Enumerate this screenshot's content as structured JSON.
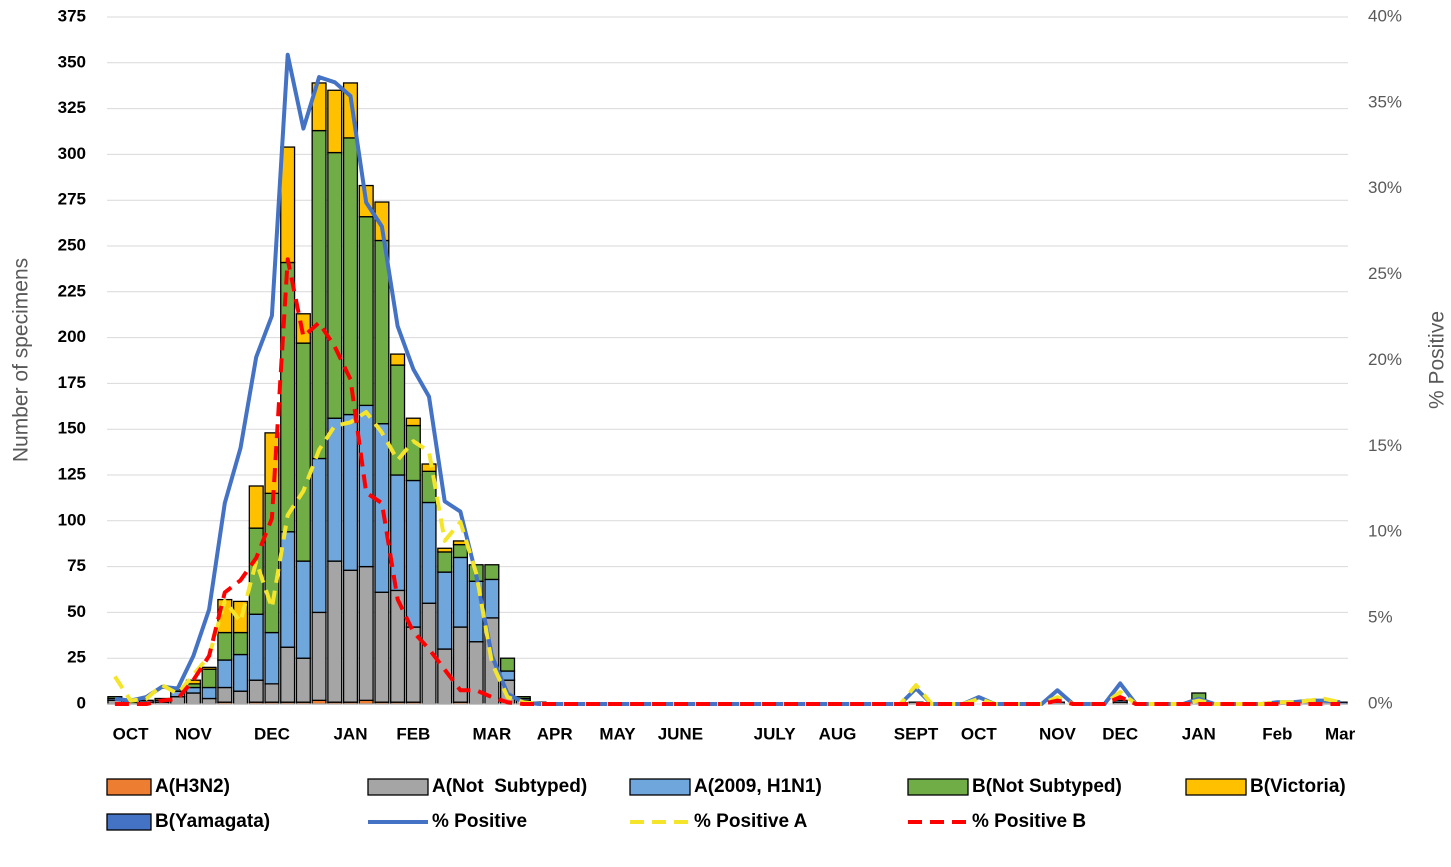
{
  "chart_data": {
    "type": "bar",
    "stacked": true,
    "y_label": "Number of specimens",
    "y2_label": "% Positive",
    "ylim": [
      0,
      375
    ],
    "yticks": [
      0,
      25,
      50,
      75,
      100,
      125,
      150,
      175,
      200,
      225,
      250,
      275,
      300,
      325,
      350,
      375
    ],
    "y2lim": [
      0,
      40
    ],
    "y2ticks": [
      {
        "value": 0,
        "label": "0%"
      },
      {
        "value": 5,
        "label": "5%"
      },
      {
        "value": 10,
        "label": "10%"
      },
      {
        "value": 15,
        "label": "15%"
      },
      {
        "value": 20,
        "label": "20%"
      },
      {
        "value": 25,
        "label": "25%"
      },
      {
        "value": 30,
        "label": "30%"
      },
      {
        "value": 35,
        "label": "35%"
      },
      {
        "value": 40,
        "label": "40%"
      }
    ],
    "grid": true,
    "categories": [
      null,
      "OCT",
      null,
      null,
      null,
      "NOV",
      null,
      null,
      null,
      null,
      "DEC",
      null,
      null,
      null,
      null,
      "JAN",
      null,
      null,
      null,
      "FEB",
      null,
      null,
      null,
      null,
      "MAR",
      null,
      null,
      null,
      "APR",
      null,
      null,
      null,
      "MAY",
      null,
      null,
      null,
      "JUNE",
      null,
      null,
      null,
      null,
      null,
      "JULY",
      null,
      null,
      null,
      "AUG",
      null,
      null,
      null,
      null,
      "SEPT",
      null,
      null,
      null,
      "OCT",
      null,
      null,
      null,
      null,
      "NOV",
      null,
      null,
      null,
      "DEC",
      null,
      null,
      null,
      null,
      "JAN",
      null,
      null,
      null,
      null,
      "Feb",
      null,
      null,
      null,
      "Mar"
    ],
    "series": [
      {
        "name": "A(H3N2)",
        "type": "bar",
        "color": "#ED7D31",
        "values": [
          0,
          0,
          0,
          0,
          0,
          0,
          0,
          1,
          0,
          1,
          1,
          1,
          1,
          2,
          1,
          1,
          2,
          1,
          1,
          1,
          0,
          0,
          1,
          0,
          0,
          0,
          0,
          0,
          0,
          0,
          0,
          0,
          0,
          0,
          0,
          0,
          0,
          0,
          0,
          0,
          0,
          0,
          0,
          0,
          0,
          0,
          0,
          0,
          0,
          0,
          0,
          0,
          0,
          0,
          0,
          0,
          0,
          0,
          0,
          0,
          0,
          0,
          0,
          0,
          0,
          0,
          0,
          0,
          0,
          0,
          0,
          0,
          0,
          0,
          0,
          0,
          0,
          0,
          0
        ]
      },
      {
        "name": "A(Not  Subtyped)",
        "type": "bar",
        "color": "#A5A5A5",
        "values": [
          2,
          0,
          1,
          1,
          4,
          6,
          3,
          8,
          7,
          12,
          10,
          30,
          24,
          48,
          77,
          72,
          73,
          60,
          61,
          41,
          55,
          30,
          41,
          34,
          47,
          13,
          2,
          1,
          0,
          0,
          0,
          0,
          0,
          0,
          0,
          0,
          0,
          0,
          0,
          0,
          0,
          0,
          0,
          0,
          0,
          0,
          0,
          0,
          0,
          0,
          0,
          1,
          0,
          0,
          0,
          0,
          0,
          0,
          0,
          0,
          0,
          0,
          0,
          0,
          1,
          0,
          0,
          0,
          0,
          1,
          0,
          0,
          0,
          0,
          1,
          1,
          1,
          2,
          0
        ]
      },
      {
        "name": "A(2009, H1N1)",
        "type": "bar",
        "color": "#6FA6DC",
        "values": [
          1,
          0,
          1,
          1,
          3,
          3,
          6,
          15,
          20,
          36,
          28,
          63,
          53,
          84,
          78,
          85,
          88,
          92,
          63,
          80,
          55,
          42,
          38,
          33,
          21,
          5,
          1,
          0,
          0,
          0,
          0,
          0,
          0,
          0,
          0,
          0,
          0,
          0,
          0,
          0,
          0,
          0,
          0,
          0,
          0,
          0,
          0,
          0,
          0,
          0,
          0,
          0,
          0,
          0,
          0,
          0,
          0,
          0,
          0,
          0,
          1,
          0,
          0,
          0,
          1,
          0,
          0,
          0,
          0,
          0,
          0,
          0,
          0,
          0,
          0,
          0,
          0,
          0,
          0
        ]
      },
      {
        "name": "B(Not Subtyped)",
        "type": "bar",
        "color": "#70AD47",
        "values": [
          1,
          1,
          0,
          1,
          1,
          2,
          10,
          15,
          12,
          47,
          76,
          147,
          119,
          179,
          145,
          151,
          103,
          100,
          60,
          30,
          17,
          11,
          7,
          9,
          8,
          7,
          1,
          0,
          0,
          0,
          0,
          0,
          0,
          0,
          0,
          0,
          0,
          0,
          0,
          0,
          0,
          0,
          0,
          0,
          0,
          0,
          0,
          0,
          0,
          0,
          0,
          0,
          0,
          0,
          0,
          0,
          0,
          0,
          0,
          0,
          0,
          0,
          0,
          0,
          0,
          0,
          0,
          0,
          0,
          5,
          0,
          0,
          0,
          0,
          0,
          0,
          0,
          0,
          0
        ]
      },
      {
        "name": "B(Victoria)",
        "type": "bar",
        "color": "#FFC000",
        "values": [
          0,
          0,
          0,
          0,
          1,
          2,
          1,
          18,
          17,
          23,
          33,
          63,
          16,
          26,
          34,
          30,
          17,
          21,
          6,
          4,
          4,
          2,
          2,
          0,
          0,
          0,
          0,
          0,
          0,
          0,
          0,
          0,
          0,
          0,
          0,
          0,
          0,
          0,
          0,
          0,
          0,
          0,
          0,
          0,
          0,
          0,
          0,
          0,
          0,
          0,
          0,
          0,
          0,
          0,
          0,
          0,
          0,
          0,
          0,
          0,
          0,
          0,
          0,
          0,
          0,
          0,
          0,
          0,
          0,
          0,
          0,
          0,
          0,
          0,
          0,
          0,
          0,
          0,
          0
        ]
      },
      {
        "name": "B(Yamagata)",
        "type": "bar",
        "color": "#4472C4",
        "values": [
          0,
          0,
          0,
          0,
          0,
          0,
          0,
          0,
          0,
          0,
          0,
          0,
          0,
          0,
          0,
          0,
          0,
          0,
          0,
          0,
          0,
          0,
          0,
          0,
          0,
          0,
          0,
          0,
          0,
          0,
          0,
          0,
          0,
          0,
          0,
          0,
          0,
          0,
          0,
          0,
          0,
          0,
          0,
          0,
          0,
          0,
          0,
          0,
          0,
          0,
          0,
          0,
          0,
          0,
          0,
          0,
          0,
          0,
          0,
          0,
          0,
          0,
          0,
          0,
          0,
          0,
          0,
          0,
          0,
          0,
          0,
          0,
          0,
          0,
          0,
          0,
          1,
          0,
          1
        ]
      },
      {
        "name": "% Positive",
        "type": "line",
        "axis": "y2",
        "color": "#4472C4",
        "dash": false,
        "values": [
          0.3,
          0.2,
          0.4,
          1.0,
          0.9,
          2.8,
          5.5,
          11.7,
          14.9,
          20.2,
          22.6,
          37.8,
          33.5,
          36.5,
          36.2,
          35.4,
          29.2,
          27.8,
          22.0,
          19.5,
          17.9,
          11.8,
          11.2,
          7.5,
          2.8,
          0.6,
          0.1,
          0,
          0,
          0,
          0,
          0,
          0,
          0,
          0,
          0,
          0,
          0,
          0,
          0,
          0,
          0,
          0,
          0,
          0,
          0,
          0,
          0,
          0,
          0,
          0,
          0.9,
          0,
          0,
          0,
          0.4,
          0,
          0,
          0,
          0,
          0.8,
          0,
          0,
          0,
          1.2,
          0,
          0,
          0,
          0,
          0.3,
          0,
          0,
          0,
          0,
          0.1,
          0.1,
          0.2,
          0.2,
          0.1
        ]
      },
      {
        "name": "% Positive A",
        "type": "line",
        "axis": "y2",
        "color": "#F5E52A",
        "dash": true,
        "values": [
          1.6,
          0.2,
          0.3,
          1.1,
          0.6,
          1.7,
          2.8,
          6.0,
          4.8,
          8.3,
          5.6,
          11.0,
          12.4,
          14.8,
          16.2,
          16.4,
          17.0,
          15.8,
          14.2,
          15.3,
          14.7,
          9.5,
          10.6,
          7.6,
          2.4,
          0.4,
          0.1,
          0,
          0,
          0,
          0,
          0,
          0,
          0,
          0,
          0,
          0,
          0,
          0,
          0,
          0,
          0,
          0,
          0,
          0,
          0,
          0,
          0,
          0,
          0,
          0,
          1.1,
          0,
          0,
          0,
          0.3,
          0,
          0,
          0,
          0,
          0.4,
          0,
          0,
          0,
          0.7,
          0,
          0,
          0,
          0,
          0.2,
          0,
          0,
          0,
          0,
          0.1,
          0.1,
          0.2,
          0.3,
          0.1
        ]
      },
      {
        "name": "% Positive B",
        "type": "line",
        "axis": "y2",
        "color": "#FF0000",
        "dash": true,
        "values": [
          0,
          0,
          0,
          0.2,
          0.3,
          1.4,
          2.8,
          6.5,
          7.2,
          8.5,
          10.8,
          25.9,
          21.4,
          22.2,
          20.8,
          18.9,
          12.3,
          11.7,
          6.1,
          4.2,
          3.2,
          2.0,
          0.8,
          0.8,
          0.4,
          0.1,
          0,
          0,
          0,
          0,
          0,
          0,
          0,
          0,
          0,
          0,
          0,
          0,
          0,
          0,
          0,
          0,
          0,
          0,
          0,
          0,
          0,
          0,
          0,
          0,
          0,
          0,
          0,
          0,
          0,
          0,
          0,
          0,
          0,
          0,
          0.2,
          0,
          0,
          0,
          0.4,
          0,
          0,
          0,
          0,
          0,
          0,
          0,
          0,
          0,
          0,
          0,
          0,
          0,
          0
        ]
      }
    ]
  }
}
